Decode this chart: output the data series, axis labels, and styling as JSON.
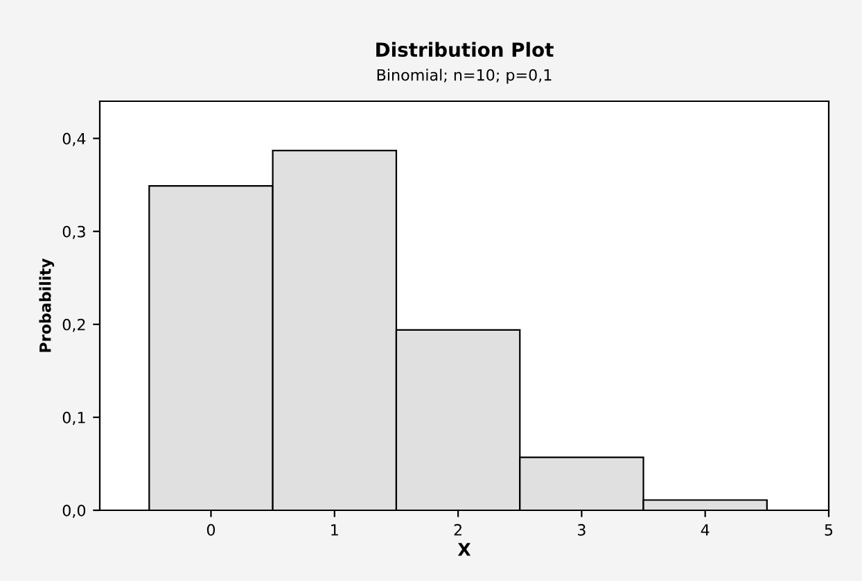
{
  "chart_data": {
    "type": "histogram",
    "title": "Distribution Plot",
    "subtitle": "Binomial; n=10; p=0,1",
    "xlabel": "X",
    "ylabel": "Probability",
    "bins": [
      -0.5,
      0.5,
      1.5,
      2.5,
      3.5,
      4.5
    ],
    "values": [
      0.349,
      0.387,
      0.194,
      0.057,
      0.011
    ],
    "color": "#e0e0e0",
    "xlim": [
      -0.9,
      5.0
    ],
    "xticks": [
      0,
      1,
      2,
      3,
      4,
      5
    ],
    "ylim": [
      0,
      0.44
    ],
    "yticks": [
      {
        "value": 0.0,
        "label": "0,0"
      },
      {
        "value": 0.1,
        "label": "0,1"
      },
      {
        "value": 0.2,
        "label": "0,2"
      },
      {
        "value": 0.3,
        "label": "0,3"
      },
      {
        "value": 0.4,
        "label": "0,4"
      }
    ],
    "grid": false
  }
}
